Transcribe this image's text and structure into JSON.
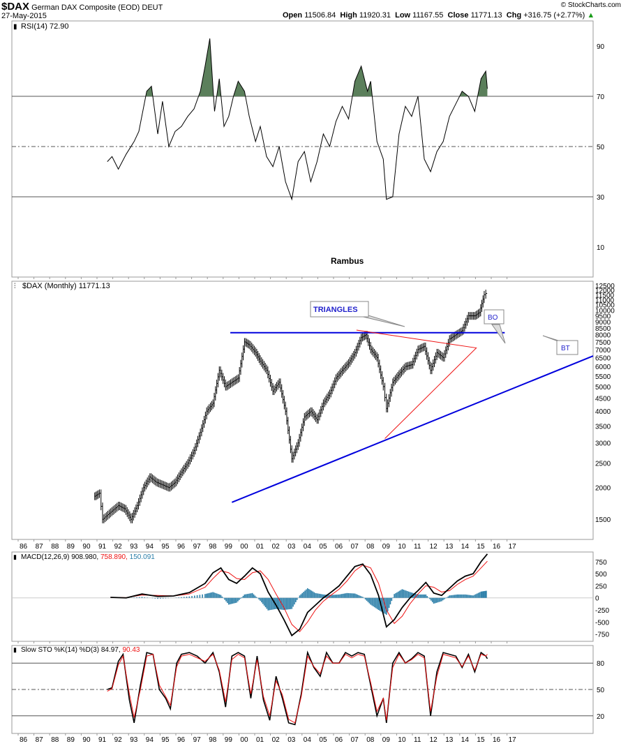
{
  "header": {
    "symbol": "$DAX",
    "name": "German DAX Composite (EOD)",
    "exchange": "DEUT",
    "date": "27-May-2015",
    "open_label": "Open",
    "open": "11506.84",
    "high_label": "High",
    "high": "11920.31",
    "low_label": "Low",
    "low": "11167.55",
    "close_label": "Close",
    "close": "11771.13",
    "chg_label": "Chg",
    "chg": "+316.75 (+2.77%)",
    "credit": "© StockCharts.com"
  },
  "colors": {
    "price": "#000000",
    "trendline": "#0000dd",
    "triangle": "#ee1111",
    "rsi_fill": "#5b7f5b",
    "macd_signal": "#ee1111",
    "macd_hist": "#2a7ea8",
    "annotation_box": "#2222cc",
    "grid": "#cccccc",
    "ref_line": "#555555"
  },
  "x_axis": {
    "labels": [
      "86",
      "87",
      "88",
      "89",
      "90",
      "91",
      "92",
      "93",
      "94",
      "95",
      "96",
      "97",
      "98",
      "99",
      "00",
      "01",
      "02",
      "03",
      "04",
      "05",
      "06",
      "07",
      "08",
      "09",
      "10",
      "11",
      "12",
      "13",
      "14",
      "15",
      "16",
      "17"
    ]
  },
  "chart_data": [
    {
      "type": "line",
      "panel": "rsi",
      "title": "RSI(14) 72.90",
      "y_ticks": [
        "90",
        "70",
        "50",
        "30",
        "10"
      ],
      "ylim": [
        0,
        100
      ],
      "reference_lines": [
        70,
        50,
        30
      ],
      "fill_above": 70,
      "annotation": "Rambus",
      "x": [
        1991.3,
        1991.6,
        1992.0,
        1992.5,
        1993.0,
        1993.3,
        1993.8,
        1994.1,
        1994.5,
        1994.8,
        1995.2,
        1995.6,
        1996.0,
        1996.4,
        1996.8,
        1997.2,
        1997.5,
        1997.8,
        1998.1,
        1998.4,
        1998.7,
        1999.0,
        1999.3,
        1999.6,
        2000.0,
        2000.3,
        2000.7,
        2001.0,
        2001.4,
        2001.8,
        2002.2,
        2002.6,
        2003.0,
        2003.4,
        2003.8,
        2004.2,
        2004.6,
        2005.0,
        2005.4,
        2005.8,
        2006.2,
        2006.6,
        2007.0,
        2007.4,
        2007.8,
        2008.0,
        2008.4,
        2008.8,
        2009.0,
        2009.4,
        2009.8,
        2010.2,
        2010.6,
        2011.0,
        2011.4,
        2011.8,
        2012.2,
        2012.6,
        2013.0,
        2013.4,
        2013.8,
        2014.2,
        2014.6,
        2015.0,
        2015.3,
        2015.4
      ],
      "y": [
        44,
        46,
        41,
        47,
        52,
        56,
        72,
        74,
        55,
        68,
        50,
        56,
        58,
        62,
        65,
        72,
        82,
        93,
        64,
        77,
        58,
        62,
        70,
        76,
        72,
        62,
        52,
        58,
        46,
        42,
        50,
        36,
        29,
        44,
        48,
        36,
        44,
        55,
        50,
        60,
        66,
        61,
        76,
        82,
        72,
        76,
        52,
        45,
        29,
        30,
        55,
        66,
        62,
        70,
        45,
        40,
        48,
        52,
        62,
        67,
        72,
        70,
        64,
        77,
        80,
        73
      ]
    },
    {
      "type": "bar",
      "panel": "price",
      "title": "$DAX (Monthly) 11771.13",
      "log_scale": true,
      "y_ticks": [
        "12500",
        "12000",
        "11500",
        "11000",
        "10500",
        "10000",
        "9500",
        "9000",
        "8500",
        "8000",
        "7500",
        "7000",
        "6500",
        "6000",
        "5500",
        "5000",
        "4500",
        "4000",
        "3500",
        "3000",
        "2500",
        "2000",
        "1500"
      ],
      "ylim": [
        1250,
        13000
      ],
      "x": [
        1990.5,
        1990.8,
        1991.0,
        1991.5,
        1992.0,
        1992.4,
        1992.8,
        1993.2,
        1993.6,
        1994.0,
        1994.4,
        1994.8,
        1995.2,
        1995.6,
        1996.0,
        1996.4,
        1996.8,
        1997.2,
        1997.6,
        1998.0,
        1998.4,
        1998.8,
        1999.2,
        1999.6,
        2000.0,
        2000.3,
        2000.7,
        2001.0,
        2001.4,
        2001.8,
        2002.2,
        2002.6,
        2003.0,
        2003.4,
        2003.8,
        2004.2,
        2004.6,
        2005.0,
        2005.4,
        2005.8,
        2006.2,
        2006.6,
        2007.0,
        2007.4,
        2007.7,
        2008.0,
        2008.4,
        2008.8,
        2009.0,
        2009.4,
        2009.8,
        2010.2,
        2010.6,
        2011.0,
        2011.4,
        2011.8,
        2012.2,
        2012.6,
        2013.0,
        2013.4,
        2013.8,
        2014.2,
        2014.6,
        2014.9,
        2015.2,
        2015.4
      ],
      "close": [
        1850,
        1900,
        1500,
        1600,
        1700,
        1650,
        1500,
        1700,
        2000,
        2200,
        2100,
        2050,
        2000,
        2100,
        2300,
        2500,
        2800,
        3300,
        4000,
        4300,
        5800,
        5000,
        5200,
        5400,
        7500,
        7300,
        6800,
        6300,
        5800,
        4800,
        5200,
        4000,
        2600,
        3000,
        3800,
        4000,
        3700,
        4300,
        4700,
        5400,
        5800,
        6200,
        6800,
        7800,
        8000,
        7000,
        6500,
        5000,
        4100,
        5200,
        5600,
        6000,
        6100,
        7000,
        7200,
        5800,
        6800,
        6500,
        7700,
        8000,
        8300,
        9500,
        9500,
        9800,
        11500,
        11771
      ]
    },
    {
      "type": "line",
      "panel": "macd",
      "title": "MACD(12,26,9) 908.980, 758.890, 150.091",
      "y_ticks": [
        "750",
        "500",
        "250",
        "0",
        "-250",
        "-500",
        "-750"
      ],
      "ylim": [
        -900,
        950
      ],
      "x": [
        1991.5,
        1992.5,
        1993.5,
        1994.5,
        1995.5,
        1996.5,
        1997.5,
        1998.0,
        1998.5,
        1999.0,
        1999.5,
        2000.0,
        2000.5,
        2001.0,
        2001.5,
        2002.0,
        2002.5,
        2003.0,
        2003.5,
        2004.0,
        2004.5,
        2005.0,
        2005.5,
        2006.0,
        2006.5,
        2007.0,
        2007.5,
        2008.0,
        2008.5,
        2009.0,
        2009.5,
        2010.0,
        2010.5,
        2011.0,
        2011.5,
        2012.0,
        2012.5,
        2013.0,
        2013.5,
        2014.0,
        2014.5,
        2015.0,
        2015.4
      ],
      "series": [
        {
          "name": "MACD",
          "values": [
            10,
            0,
            80,
            30,
            40,
            110,
            300,
            520,
            620,
            380,
            300,
            450,
            620,
            500,
            120,
            -150,
            -450,
            -780,
            -650,
            -300,
            -150,
            0,
            120,
            250,
            450,
            650,
            700,
            480,
            50,
            -600,
            -450,
            -200,
            0,
            150,
            320,
            100,
            50,
            200,
            350,
            450,
            500,
            750,
            909
          ]
        },
        {
          "name": "Signal",
          "values": [
            10,
            5,
            60,
            50,
            40,
            80,
            220,
            400,
            560,
            520,
            400,
            380,
            520,
            560,
            380,
            80,
            -200,
            -550,
            -700,
            -500,
            -250,
            -70,
            60,
            180,
            350,
            560,
            680,
            620,
            300,
            -250,
            -530,
            -380,
            -120,
            80,
            250,
            220,
            120,
            150,
            280,
            380,
            450,
            620,
            759
          ]
        },
        {
          "name": "Histogram",
          "values": [
            0,
            -5,
            20,
            -20,
            0,
            30,
            80,
            120,
            60,
            -140,
            -100,
            70,
            100,
            -60,
            -260,
            -230,
            -250,
            -230,
            50,
            200,
            100,
            70,
            60,
            70,
            100,
            90,
            20,
            -140,
            -250,
            -350,
            80,
            180,
            120,
            70,
            70,
            -120,
            -70,
            50,
            70,
            70,
            50,
            130,
            150
          ]
        }
      ]
    },
    {
      "type": "line",
      "panel": "stochastic",
      "title": "Slow STO %K(14) %D(3) 84.97, 90.43",
      "y_ticks": [
        "80",
        "50",
        "20"
      ],
      "ylim": [
        0,
        100
      ],
      "reference_lines": [
        80,
        50,
        20
      ],
      "x": [
        1991.3,
        1991.6,
        1992.0,
        1992.3,
        1992.7,
        1993.0,
        1993.4,
        1993.8,
        1994.2,
        1994.6,
        1995.0,
        1995.3,
        1995.7,
        1996.0,
        1996.5,
        1997.0,
        1997.5,
        1998.0,
        1998.4,
        1998.8,
        1999.2,
        1999.6,
        2000.0,
        2000.4,
        2000.8,
        2001.2,
        2001.6,
        2002.0,
        2002.4,
        2002.8,
        2003.2,
        2003.6,
        2004.0,
        2004.4,
        2004.8,
        2005.2,
        2005.6,
        2006.0,
        2006.4,
        2006.8,
        2007.2,
        2007.6,
        2008.0,
        2008.4,
        2008.8,
        2009.0,
        2009.4,
        2009.8,
        2010.2,
        2010.6,
        2011.0,
        2011.4,
        2011.8,
        2012.2,
        2012.6,
        2013.0,
        2013.4,
        2013.8,
        2014.2,
        2014.6,
        2015.0,
        2015.3,
        2015.4
      ],
      "series": [
        {
          "name": "%K",
          "values": [
            50,
            52,
            82,
            90,
            38,
            12,
            55,
            92,
            90,
            50,
            40,
            28,
            80,
            90,
            92,
            88,
            80,
            92,
            70,
            30,
            88,
            92,
            88,
            40,
            88,
            38,
            15,
            65,
            40,
            12,
            10,
            45,
            92,
            75,
            65,
            92,
            80,
            80,
            92,
            88,
            92,
            90,
            55,
            20,
            40,
            12,
            80,
            92,
            80,
            85,
            92,
            88,
            20,
            70,
            92,
            90,
            88,
            75,
            90,
            70,
            92,
            88,
            85
          ]
        },
        {
          "name": "%D",
          "values": [
            48,
            51,
            78,
            88,
            45,
            18,
            50,
            88,
            90,
            55,
            42,
            32,
            76,
            88,
            90,
            86,
            82,
            90,
            72,
            36,
            84,
            90,
            86,
            45,
            84,
            42,
            20,
            60,
            44,
            16,
            12,
            42,
            88,
            76,
            68,
            88,
            80,
            80,
            90,
            86,
            90,
            88,
            58,
            25,
            40,
            15,
            75,
            90,
            80,
            84,
            90,
            86,
            25,
            65,
            90,
            88,
            86,
            76,
            88,
            72,
            90,
            88,
            90
          ]
        }
      ]
    }
  ],
  "annotations": {
    "triangles_label": "TRIANGLES",
    "bo_label": "BO",
    "bt_label": "BT"
  }
}
